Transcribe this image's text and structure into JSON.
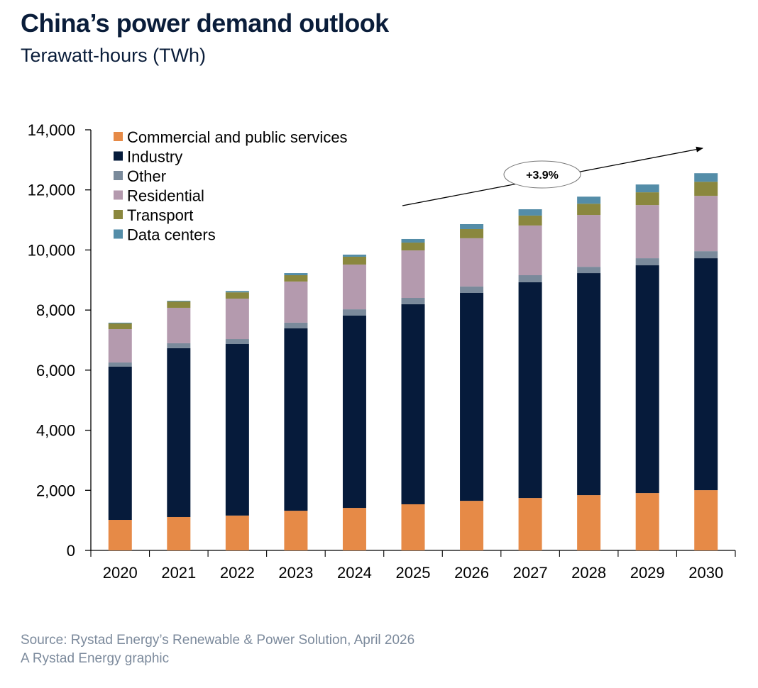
{
  "header": {
    "title": "China’s power demand outlook",
    "subtitle": "Terawatt-hours (TWh)"
  },
  "footer": {
    "source": "Source: Rystad Energy’s Renewable & Power Solution, April 2026",
    "credit": "A Rystad Energy graphic"
  },
  "chart_data": {
    "type": "bar",
    "stacked": true,
    "title": "China’s power demand outlook",
    "subtitle": "Terawatt-hours (TWh)",
    "xlabel": "",
    "ylabel": "Terawatt-hours (TWh)",
    "ylim": [
      0,
      14000
    ],
    "yticks": [
      0,
      2000,
      4000,
      6000,
      8000,
      10000,
      12000,
      14000
    ],
    "ytick_labels": [
      "0",
      "2,000",
      "4,000",
      "6,000",
      "8,000",
      "10,000",
      "12,000",
      "14,000"
    ],
    "grid": false,
    "legend_position": "top-left",
    "categories": [
      "2020",
      "2021",
      "2022",
      "2023",
      "2024",
      "2025",
      "2026",
      "2027",
      "2028",
      "2029",
      "2030"
    ],
    "series": [
      {
        "name": "Commercial and public services",
        "color": "#e68a47",
        "values": [
          1015,
          1110,
          1160,
          1320,
          1415,
          1535,
          1650,
          1745,
          1840,
          1910,
          2005
        ]
      },
      {
        "name": "Industry",
        "color": "#061b3b",
        "values": [
          5100,
          5620,
          5710,
          6070,
          6400,
          6660,
          6920,
          7180,
          7390,
          7580,
          7720
        ]
      },
      {
        "name": "Other",
        "color": "#7a8a9b",
        "values": [
          140,
          165,
          165,
          190,
          210,
          210,
          215,
          235,
          210,
          235,
          235
        ]
      },
      {
        "name": "Residential",
        "color": "#b49aae",
        "values": [
          1110,
          1180,
          1345,
          1370,
          1490,
          1580,
          1605,
          1655,
          1725,
          1770,
          1840
        ]
      },
      {
        "name": "Transport",
        "color": "#8a873e",
        "values": [
          190,
          210,
          210,
          210,
          260,
          260,
          305,
          330,
          375,
          425,
          470
        ]
      },
      {
        "name": "Data centers",
        "color": "#548da8",
        "values": [
          25,
          25,
          45,
          70,
          70,
          120,
          165,
          210,
          235,
          260,
          285
        ]
      }
    ],
    "annotations": [
      {
        "type": "trend-arrow",
        "label": "+3.9%",
        "from_category": "2025",
        "to_category": "2030"
      }
    ]
  }
}
